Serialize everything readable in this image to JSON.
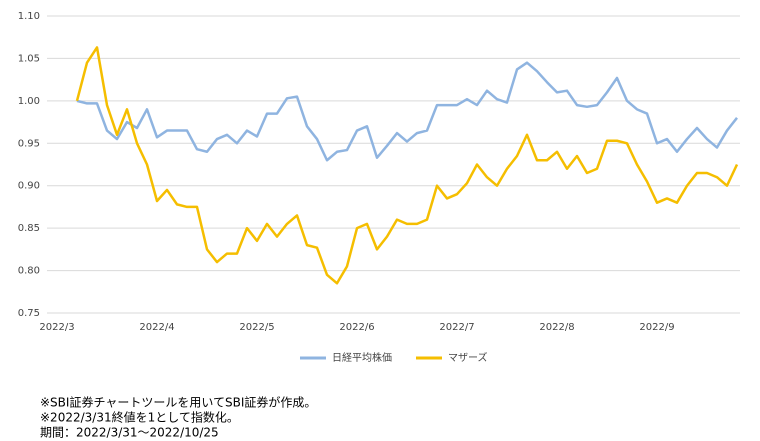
{
  "chart_data": {
    "type": "line",
    "categories": [
      "2022/3",
      null,
      null,
      null,
      null,
      null,
      null,
      null,
      null,
      null,
      "2022/4",
      null,
      null,
      null,
      null,
      null,
      null,
      null,
      null,
      null,
      "2022/5",
      null,
      null,
      null,
      null,
      null,
      null,
      null,
      null,
      null,
      "2022/6",
      null,
      null,
      null,
      null,
      null,
      null,
      null,
      null,
      null,
      "2022/7",
      null,
      null,
      null,
      null,
      null,
      null,
      null,
      null,
      null,
      "2022/8",
      null,
      null,
      null,
      null,
      null,
      null,
      null,
      null,
      null,
      "2022/9",
      null,
      null,
      null,
      null,
      null,
      null,
      null,
      null
    ],
    "series": [
      {
        "name": "日経平均株価",
        "color": "#8fb4e0",
        "values": [
          null,
          null,
          1.0,
          0.997,
          0.997,
          0.965,
          0.955,
          0.975,
          0.968,
          0.99,
          0.957,
          0.965,
          0.965,
          0.965,
          0.943,
          0.94,
          0.955,
          0.96,
          0.95,
          0.965,
          0.958,
          0.985,
          0.985,
          1.003,
          1.005,
          0.97,
          0.955,
          0.93,
          0.94,
          0.942,
          0.965,
          0.97,
          0.933,
          0.947,
          0.962,
          0.952,
          0.962,
          0.965,
          0.995,
          0.995,
          0.995,
          1.002,
          0.995,
          1.012,
          1.002,
          0.998,
          1.037,
          1.045,
          1.035,
          1.022,
          1.01,
          1.012,
          0.995,
          0.993,
          0.995,
          1.01,
          1.027,
          1.0,
          0.99,
          0.985,
          0.95,
          0.955,
          0.94,
          0.955,
          0.968,
          0.955,
          0.945,
          0.965,
          0.98
        ]
      },
      {
        "name": "マザーズ",
        "color": "#f5be00",
        "values": [
          null,
          null,
          1.0,
          1.045,
          1.063,
          0.995,
          0.96,
          0.99,
          0.95,
          0.925,
          0.882,
          0.895,
          0.878,
          0.875,
          0.875,
          0.825,
          0.81,
          0.82,
          0.82,
          0.85,
          0.835,
          0.855,
          0.84,
          0.855,
          0.865,
          0.83,
          0.827,
          0.795,
          0.785,
          0.805,
          0.85,
          0.855,
          0.825,
          0.84,
          0.86,
          0.855,
          0.855,
          0.86,
          0.9,
          0.885,
          0.89,
          0.903,
          0.925,
          0.91,
          0.9,
          0.92,
          0.935,
          0.96,
          0.93,
          0.93,
          0.94,
          0.92,
          0.935,
          0.915,
          0.92,
          0.953,
          0.953,
          0.95,
          0.925,
          0.905,
          0.88,
          0.885,
          0.88,
          0.9,
          0.915,
          0.915,
          0.91,
          0.9,
          0.925
        ]
      }
    ],
    "ylim": [
      0.75,
      1.1
    ],
    "yticks": [
      {
        "value": 0.75,
        "label": "0.75"
      },
      {
        "value": 0.8,
        "label": "0.80"
      },
      0.85,
      {
        "value": 0.9,
        "label": "0.90"
      },
      0.95,
      {
        "value": 1.0,
        "label": "1.00"
      },
      1.05,
      {
        "value": 1.1,
        "label": "1.10"
      }
    ],
    "grid": true,
    "legend": "bottom",
    "notes": [
      "※SBI証券チャートツールを用いてSBI証券が作成。",
      "※2022/3/31終値を1として指数化。",
      "期間：2022/3/31～2022/10/25"
    ]
  }
}
